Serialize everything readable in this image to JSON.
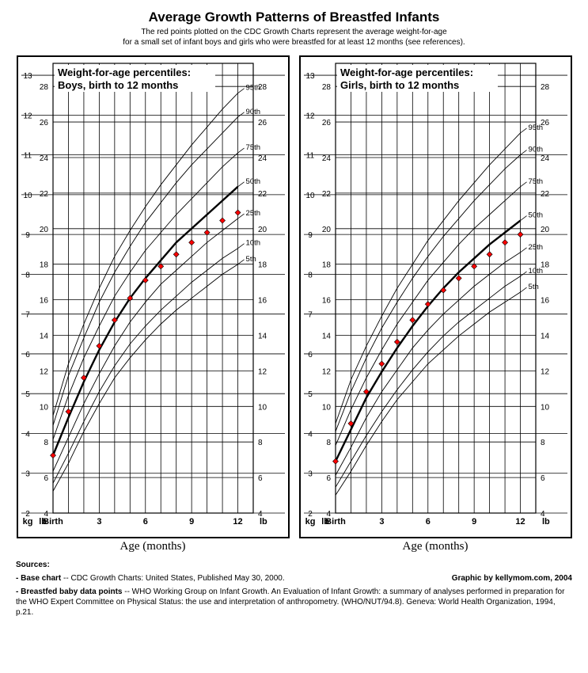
{
  "title": "Average Growth Patterns of Breastfed Infants",
  "subtitle1": "The red points plotted on the CDC Growth Charts represent the average weight-for-age",
  "subtitle2": "for a small set of infant boys and girls who were breastfed for at least 12 months (see references).",
  "xlabel": "Age (months)",
  "x_ticks": [
    "Birth",
    "3",
    "6",
    "9",
    "12"
  ],
  "x_tick_months": [
    0,
    3,
    6,
    9,
    12
  ],
  "kg_label": "kg",
  "lb_label": "lb",
  "kg_ticks": [
    2,
    3,
    4,
    5,
    6,
    7,
    8,
    9,
    10,
    11,
    12,
    13
  ],
  "lb_ticks": [
    4,
    6,
    8,
    10,
    12,
    14,
    16,
    18,
    20,
    22,
    24,
    26,
    28
  ],
  "kg_range": [
    2,
    13.3
  ],
  "lb_range": [
    4,
    29.3
  ],
  "percentile_labels": [
    "5th",
    "10th",
    "25th",
    "50th",
    "75th",
    "90th",
    "95th"
  ],
  "boys": {
    "panel_title1": "Weight-for-age percentiles:",
    "panel_title2": "Boys, birth to 12 months",
    "percentiles": {
      "5": [
        2.55,
        3.25,
        4.05,
        4.75,
        5.4,
        5.9,
        6.35,
        6.75,
        7.1,
        7.4,
        7.7,
        8.0,
        8.25
      ],
      "10": [
        2.75,
        3.5,
        4.3,
        5.05,
        5.7,
        6.25,
        6.7,
        7.1,
        7.45,
        7.8,
        8.1,
        8.4,
        8.65
      ],
      "25": [
        3.05,
        3.9,
        4.75,
        5.5,
        6.2,
        6.8,
        7.3,
        7.75,
        8.1,
        8.45,
        8.8,
        9.1,
        9.4
      ],
      "50": [
        3.45,
        4.4,
        5.3,
        6.1,
        6.8,
        7.4,
        7.9,
        8.35,
        8.8,
        9.15,
        9.5,
        9.85,
        10.2
      ],
      "75": [
        3.85,
        4.95,
        5.9,
        6.7,
        7.45,
        8.05,
        8.6,
        9.05,
        9.5,
        9.9,
        10.3,
        10.7,
        11.05
      ],
      "90": [
        4.2,
        5.45,
        6.4,
        7.3,
        8.05,
        8.7,
        9.3,
        9.8,
        10.3,
        10.75,
        11.15,
        11.55,
        11.95
      ],
      "95": [
        4.45,
        5.75,
        6.75,
        7.65,
        8.45,
        9.1,
        9.7,
        10.25,
        10.75,
        11.25,
        11.7,
        12.15,
        12.55
      ]
    },
    "data_points": [
      [
        0,
        3.45
      ],
      [
        1,
        4.55
      ],
      [
        2,
        5.4
      ],
      [
        3,
        6.2
      ],
      [
        4,
        6.85
      ],
      [
        5,
        7.4
      ],
      [
        6,
        7.85
      ],
      [
        7,
        8.2
      ],
      [
        8,
        8.5
      ],
      [
        9,
        8.8
      ],
      [
        10,
        9.05
      ],
      [
        11,
        9.35
      ],
      [
        12,
        9.55
      ]
    ]
  },
  "girls": {
    "panel_title1": "Weight-for-age percentiles:",
    "panel_title2": "Girls, birth to 12 months",
    "percentiles": {
      "5": [
        2.45,
        3.05,
        3.7,
        4.3,
        4.85,
        5.3,
        5.75,
        6.1,
        6.45,
        6.75,
        7.05,
        7.3,
        7.55
      ],
      "10": [
        2.65,
        3.3,
        3.95,
        4.55,
        5.1,
        5.6,
        6.05,
        6.45,
        6.8,
        7.1,
        7.4,
        7.7,
        7.95
      ],
      "25": [
        2.95,
        3.65,
        4.4,
        5.05,
        5.6,
        6.15,
        6.6,
        7.0,
        7.35,
        7.7,
        8.0,
        8.3,
        8.55
      ],
      "50": [
        3.3,
        4.1,
        4.9,
        5.55,
        6.15,
        6.7,
        7.2,
        7.65,
        8.05,
        8.4,
        8.75,
        9.05,
        9.35
      ],
      "75": [
        3.7,
        4.6,
        5.4,
        6.1,
        6.75,
        7.3,
        7.85,
        8.3,
        8.75,
        9.15,
        9.5,
        9.85,
        10.2
      ],
      "90": [
        4.05,
        5.05,
        5.9,
        6.65,
        7.3,
        7.9,
        8.45,
        8.95,
        9.4,
        9.85,
        10.25,
        10.65,
        11.0
      ],
      "95": [
        4.25,
        5.35,
        6.2,
        6.95,
        7.65,
        8.25,
        8.85,
        9.35,
        9.85,
        10.3,
        10.75,
        11.15,
        11.55
      ]
    },
    "data_points": [
      [
        0,
        3.3
      ],
      [
        1,
        4.25
      ],
      [
        2,
        5.05
      ],
      [
        3,
        5.75
      ],
      [
        4,
        6.3
      ],
      [
        5,
        6.85
      ],
      [
        6,
        7.25
      ],
      [
        7,
        7.6
      ],
      [
        8,
        7.9
      ],
      [
        9,
        8.2
      ],
      [
        10,
        8.5
      ],
      [
        11,
        8.8
      ],
      [
        12,
        9.0
      ]
    ]
  },
  "styling": {
    "grid_color": "#000000",
    "grid_width_major": 1,
    "grid_width_minor": 0.8,
    "percentile_thin_width": 0.9,
    "percentile_bold_width": 2.4,
    "marker_fill": "#ff0000",
    "marker_stroke": "#000000",
    "marker_size": 3.5,
    "marker_shape": "diamond",
    "font_size_axis": 10,
    "font_size_axis_label": 14,
    "font_size_panel_title": 13,
    "font_size_pct_label": 10
  },
  "sources": {
    "heading": "Sources:",
    "line1_label": "- Base chart",
    "line1_text": " -- CDC Growth Charts: United States, Published May 30, 2000.",
    "graphic_by_label": "Graphic by ",
    "graphic_by_site": "kellymom.com",
    "graphic_by_year": ", 2004",
    "line2_label": "- Breastfed baby data points",
    "line2_text": " -- WHO Working Group on Infant Growth. An Evaluation of Infant Growth: a summary of analyses performed in preparation for the WHO Expert Committee on Physical Status: the use and interpretation of anthropometry. (WHO/NUT/94.8). Geneva: World Health Organization, 1994, p.21."
  }
}
